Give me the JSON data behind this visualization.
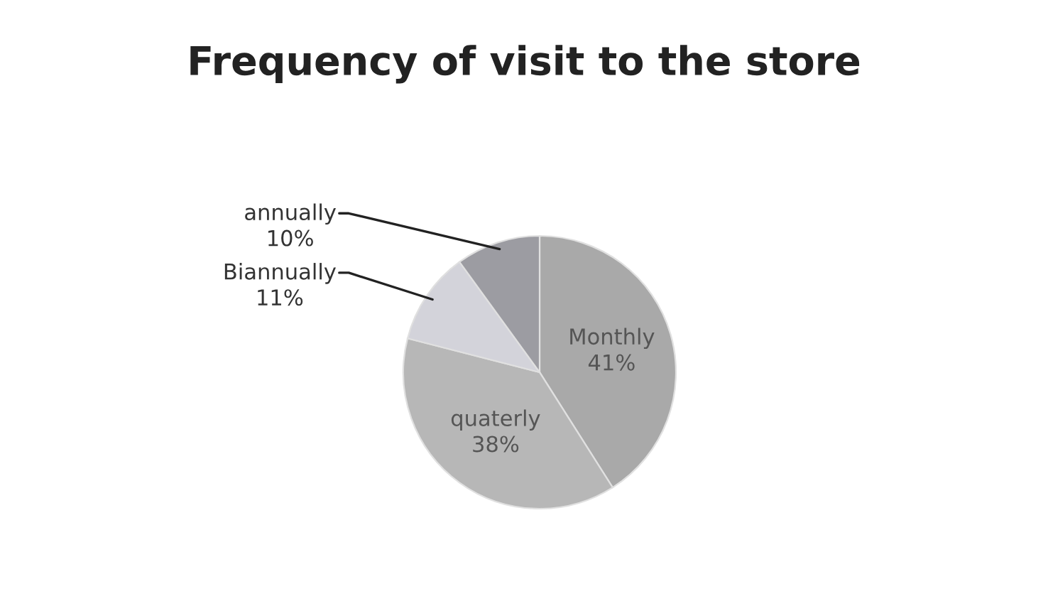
{
  "chart_data": {
    "type": "pie",
    "title": "Frequency of visit to the store",
    "categories": [
      "Monthly",
      "quaterly",
      "Biannually",
      "annually"
    ],
    "values": [
      41,
      38,
      11,
      10
    ],
    "value_labels": [
      "41%",
      "38%",
      "11%",
      "10%"
    ],
    "colors": [
      "#a9a9a9",
      "#b7b7b7",
      "#d3d3da",
      "#9c9ca2"
    ],
    "legend": false
  }
}
